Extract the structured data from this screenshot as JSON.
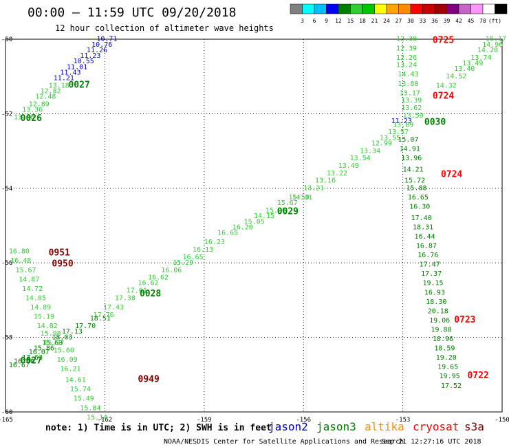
{
  "header": {
    "title": "00:00 – 11:59 UTC 09/20/2018",
    "subtitle": "12 hour collection of altimeter wave heights"
  },
  "colorbar": {
    "colors": [
      "#808080",
      "#00ffff",
      "#00bfff",
      "#0000ff",
      "#008000",
      "#32cd32",
      "#00c800",
      "#ffff00",
      "#ffa500",
      "#ff8c00",
      "#ff0000",
      "#c80000",
      "#a00000",
      "#800080",
      "#c864c8",
      "#ff96ff",
      "#ffffff",
      "#000000"
    ],
    "labels": [
      "3",
      "6",
      "9",
      "12",
      "15",
      "18",
      "21",
      "24",
      "27",
      "30",
      "33",
      "36",
      "39",
      "42",
      "45",
      "70",
      "(ft)"
    ]
  },
  "footer": {
    "note": "note: 1) Time is in UTC; 2) SWH is in feet",
    "credit": "NOAA/NESDIS Center for Satellite Applications and Research",
    "timestamp": "Sep 21 12:27:16 UTC 2018"
  },
  "legend": [
    {
      "name": "jason2",
      "color": "#0000cc"
    },
    {
      "name": "jason3",
      "color": "#008000"
    },
    {
      "name": "altika",
      "color": "#ff8c00"
    },
    {
      "name": "cryosat",
      "color": "#ff0000"
    },
    {
      "name": "s3a",
      "color": "#800000"
    }
  ],
  "chart_data": {
    "type": "scatter",
    "xlim": [
      -165,
      -150
    ],
    "ylim": [
      -60,
      -50
    ],
    "x_ticks": [
      -165,
      -162,
      -159,
      -156,
      -153,
      -150
    ],
    "y_ticks": [
      -50,
      -52,
      -54,
      -56,
      -58,
      -60
    ],
    "x_tick_labels": [
      "-165",
      "-162",
      "-159",
      "-156",
      "-153",
      "-150"
    ],
    "y_tick_labels": [
      "-50",
      "-52",
      "-54",
      "-56",
      "-58",
      "-60"
    ],
    "grid": true,
    "colors": {
      "light": "#32cd32",
      "dark": "#008000",
      "blue": "#0000cc",
      "red": "#ff0000",
      "maroon": "#800000"
    },
    "time_labels": [
      {
        "text": "0725",
        "x": -152.1,
        "y": -50.1,
        "color": "red"
      },
      {
        "text": "0724",
        "x": -152.1,
        "y": -51.6,
        "color": "red"
      },
      {
        "text": "0724",
        "x": -151.85,
        "y": -53.7,
        "color": "red"
      },
      {
        "text": "0723",
        "x": -151.45,
        "y": -57.6,
        "color": "red"
      },
      {
        "text": "0722",
        "x": -151.05,
        "y": -59.1,
        "color": "red"
      },
      {
        "text": "0027",
        "x": -163.1,
        "y": -51.3,
        "color": "dark"
      },
      {
        "text": "0026",
        "x": -164.55,
        "y": -52.2,
        "color": "dark"
      },
      {
        "text": "0030",
        "x": -152.35,
        "y": -52.3,
        "color": "dark"
      },
      {
        "text": "0029",
        "x": -156.8,
        "y": -54.7,
        "color": "dark"
      },
      {
        "text": "0028",
        "x": -160.95,
        "y": -56.9,
        "color": "dark"
      },
      {
        "text": "0027",
        "x": -164.55,
        "y": -58.7,
        "color": "dark"
      },
      {
        "text": "0951",
        "x": -163.7,
        "y": -55.8,
        "color": "maroon"
      },
      {
        "text": "0950",
        "x": -163.6,
        "y": -56.1,
        "color": "maroon"
      },
      {
        "text": "0949",
        "x": -161.0,
        "y": -59.2,
        "color": "maroon"
      }
    ],
    "series": [
      {
        "name": "jason2",
        "color": "blue",
        "points": [
          {
            "x": -162.25,
            "y": -50.05,
            "v": "10.71"
          },
          {
            "x": -162.4,
            "y": -50.2,
            "v": "10.76"
          },
          {
            "x": -162.55,
            "y": -50.35,
            "v": "11.26"
          },
          {
            "x": -162.75,
            "y": -50.5,
            "v": "11.23"
          },
          {
            "x": -162.95,
            "y": -50.65,
            "v": "10.55"
          },
          {
            "x": -163.15,
            "y": -50.8,
            "v": "11.01"
          },
          {
            "x": -163.35,
            "y": -50.95,
            "v": "11.43"
          },
          {
            "x": -163.55,
            "y": -51.1,
            "v": "11.21"
          },
          {
            "x": -153.35,
            "y": -52.25,
            "v": "11.23"
          }
        ]
      },
      {
        "name": "jason3-a",
        "color": "light",
        "points": [
          {
            "x": -163.7,
            "y": -51.3,
            "v": "13.18"
          },
          {
            "x": -163.95,
            "y": -51.45,
            "v": "12.82"
          },
          {
            "x": -164.1,
            "y": -51.6,
            "v": "12.48"
          },
          {
            "x": -164.3,
            "y": -51.8,
            "v": "12.89"
          },
          {
            "x": -164.5,
            "y": -51.95,
            "v": "13.36"
          },
          {
            "x": -164.75,
            "y": -52.15,
            "v": "13.86"
          }
        ]
      },
      {
        "name": "jason3-b",
        "color": "light",
        "points": [
          {
            "x": -153.2,
            "y": -50.05,
            "v": "12.30"
          },
          {
            "x": -153.2,
            "y": -50.3,
            "v": "12.39"
          },
          {
            "x": -153.2,
            "y": -50.55,
            "v": "12.26"
          },
          {
            "x": -153.2,
            "y": -50.75,
            "v": "13.24"
          },
          {
            "x": -153.15,
            "y": -51.0,
            "v": "14.43"
          },
          {
            "x": -153.15,
            "y": -51.25,
            "v": "13.80"
          },
          {
            "x": -153.1,
            "y": -51.5,
            "v": "13.17"
          },
          {
            "x": -153.05,
            "y": -51.7,
            "v": "13.39"
          },
          {
            "x": -153.05,
            "y": -51.9,
            "v": "13.62"
          },
          {
            "x": -153.0,
            "y": -52.1,
            "v": "13.50"
          },
          {
            "x": -150.5,
            "y": -50.05,
            "v": "15.17"
          },
          {
            "x": -150.6,
            "y": -50.2,
            "v": "14.96"
          },
          {
            "x": -150.75,
            "y": -50.35,
            "v": "14.20"
          },
          {
            "x": -150.95,
            "y": -50.55,
            "v": "13.74"
          },
          {
            "x": -151.2,
            "y": -50.7,
            "v": "13.49"
          },
          {
            "x": -151.45,
            "y": -50.85,
            "v": "13.40"
          },
          {
            "x": -151.7,
            "y": -51.05,
            "v": "14.52"
          },
          {
            "x": -152.0,
            "y": -51.3,
            "v": "14.32"
          }
        ]
      },
      {
        "name": "jason3-c",
        "color": "light",
        "points": [
          {
            "x": -153.3,
            "y": -52.35,
            "v": "13.09"
          },
          {
            "x": -153.45,
            "y": -52.55,
            "v": "13.57"
          },
          {
            "x": -153.7,
            "y": -52.7,
            "v": "13.55"
          },
          {
            "x": -153.95,
            "y": -52.85,
            "v": "12.99"
          },
          {
            "x": -154.3,
            "y": -53.05,
            "v": "13.34"
          },
          {
            "x": -154.6,
            "y": -53.25,
            "v": "13.54"
          },
          {
            "x": -154.95,
            "y": -53.45,
            "v": "13.49"
          },
          {
            "x": -155.3,
            "y": -53.65,
            "v": "13.22"
          },
          {
            "x": -155.65,
            "y": -53.85,
            "v": "13.16"
          },
          {
            "x": -156.0,
            "y": -54.05,
            "v": "13.21"
          },
          {
            "x": -156.35,
            "y": -54.3,
            "v": "14.31"
          },
          {
            "x": -156.45,
            "y": -54.3,
            "v": "15.50"
          },
          {
            "x": -156.8,
            "y": -54.45,
            "v": "15.67"
          },
          {
            "x": -157.15,
            "y": -54.65,
            "v": "15.26"
          },
          {
            "x": -157.5,
            "y": -54.8,
            "v": "14.15"
          },
          {
            "x": -157.8,
            "y": -54.95,
            "v": "15.05"
          },
          {
            "x": -158.15,
            "y": -55.1,
            "v": "16.20"
          },
          {
            "x": -158.6,
            "y": -55.25,
            "v": "16.65"
          },
          {
            "x": -159.0,
            "y": -55.5,
            "v": "16.23"
          },
          {
            "x": -159.35,
            "y": -55.7,
            "v": "16.13"
          },
          {
            "x": -159.65,
            "y": -55.9,
            "v": "16.65"
          },
          {
            "x": -159.95,
            "y": -56.05,
            "v": "15.29"
          },
          {
            "x": -160.3,
            "y": -56.25,
            "v": "16.06"
          },
          {
            "x": -160.7,
            "y": -56.45,
            "v": "16.62"
          },
          {
            "x": -161.0,
            "y": -56.6,
            "v": "16.62"
          },
          {
            "x": -161.35,
            "y": -56.8,
            "v": "17.61"
          },
          {
            "x": -161.7,
            "y": -57.0,
            "v": "17.38"
          },
          {
            "x": -162.05,
            "y": -57.25,
            "v": "17.43"
          },
          {
            "x": -162.35,
            "y": -57.45,
            "v": "17.76"
          }
        ]
      },
      {
        "name": "jason3-d",
        "color": "dark",
        "points": [
          {
            "x": -162.45,
            "y": -57.55,
            "v": "18.51"
          },
          {
            "x": -162.9,
            "y": -57.75,
            "v": "17.70"
          },
          {
            "x": -163.3,
            "y": -57.9,
            "v": "17.13"
          },
          {
            "x": -163.6,
            "y": -58.05,
            "v": "18.03"
          },
          {
            "x": -163.9,
            "y": -58.2,
            "v": "15.69"
          },
          {
            "x": -164.15,
            "y": -58.35,
            "v": "15.86"
          },
          {
            "x": -164.3,
            "y": -58.45,
            "v": "16.07"
          },
          {
            "x": -164.5,
            "y": -58.6,
            "v": "17.63"
          },
          {
            "x": -164.75,
            "y": -58.7,
            "v": "16.40"
          },
          {
            "x": -164.9,
            "y": -58.8,
            "v": "16.67"
          }
        ]
      },
      {
        "name": "jason3-e",
        "color": "light",
        "points": [
          {
            "x": -164.9,
            "y": -55.75,
            "v": "16.80"
          },
          {
            "x": -164.85,
            "y": -56.0,
            "v": "16.48"
          },
          {
            "x": -164.7,
            "y": -56.25,
            "v": "15.67"
          },
          {
            "x": -164.6,
            "y": -56.5,
            "v": "14.87"
          },
          {
            "x": -164.5,
            "y": -56.75,
            "v": "14.72"
          },
          {
            "x": -164.4,
            "y": -57.0,
            "v": "14.05"
          },
          {
            "x": -164.25,
            "y": -57.25,
            "v": "14.89"
          },
          {
            "x": -164.15,
            "y": -57.5,
            "v": "15.19"
          },
          {
            "x": -164.05,
            "y": -57.75,
            "v": "14.82"
          },
          {
            "x": -163.95,
            "y": -57.95,
            "v": "15.98"
          },
          {
            "x": -163.85,
            "y": -58.2,
            "v": "15.97"
          },
          {
            "x": -163.55,
            "y": -58.4,
            "v": "15.60"
          },
          {
            "x": -163.45,
            "y": -58.65,
            "v": "16.09"
          },
          {
            "x": -163.35,
            "y": -58.9,
            "v": "16.21"
          },
          {
            "x": -163.2,
            "y": -59.2,
            "v": "14.61"
          },
          {
            "x": -163.05,
            "y": -59.45,
            "v": "15.74"
          },
          {
            "x": -162.95,
            "y": -59.7,
            "v": "15.49"
          },
          {
            "x": -162.75,
            "y": -59.95,
            "v": "15.84"
          },
          {
            "x": -162.55,
            "y": -60.2,
            "v": "15.14"
          }
        ]
      },
      {
        "name": "jason3-f",
        "color": "dark",
        "points": [
          {
            "x": -153.15,
            "y": -52.75,
            "v": "15.07"
          },
          {
            "x": -153.1,
            "y": -53.0,
            "v": "14.91"
          },
          {
            "x": -153.05,
            "y": -53.25,
            "v": "13.96"
          },
          {
            "x": -153.0,
            "y": -53.55,
            "v": "14.21"
          },
          {
            "x": -152.95,
            "y": -53.85,
            "v": "15.72"
          },
          {
            "x": -152.9,
            "y": -54.05,
            "v": "15.88"
          },
          {
            "x": -152.85,
            "y": -54.3,
            "v": "16.65"
          },
          {
            "x": -152.8,
            "y": -54.55,
            "v": "16.30"
          },
          {
            "x": -152.75,
            "y": -54.85,
            "v": "17.40"
          },
          {
            "x": -152.7,
            "y": -55.1,
            "v": "18.31"
          },
          {
            "x": -152.65,
            "y": -55.35,
            "v": "16.44"
          },
          {
            "x": -152.6,
            "y": -55.6,
            "v": "16.87"
          },
          {
            "x": -152.55,
            "y": -55.85,
            "v": "16.76"
          },
          {
            "x": -152.5,
            "y": -56.1,
            "v": "17.47"
          },
          {
            "x": -152.45,
            "y": -56.35,
            "v": "17.37"
          },
          {
            "x": -152.4,
            "y": -56.6,
            "v": "19.15"
          },
          {
            "x": -152.35,
            "y": -56.85,
            "v": "16.93"
          },
          {
            "x": -152.3,
            "y": -57.1,
            "v": "18.30"
          },
          {
            "x": -152.25,
            "y": -57.35,
            "v": "20.18"
          },
          {
            "x": -152.2,
            "y": -57.6,
            "v": "19.06"
          },
          {
            "x": -152.15,
            "y": -57.85,
            "v": "19.88"
          },
          {
            "x": -152.1,
            "y": -58.1,
            "v": "18.96"
          },
          {
            "x": -152.05,
            "y": -58.35,
            "v": "18.59"
          },
          {
            "x": -152.0,
            "y": -58.6,
            "v": "19.20"
          },
          {
            "x": -151.95,
            "y": -58.85,
            "v": "19.65"
          },
          {
            "x": -151.9,
            "y": -59.1,
            "v": "19.95"
          },
          {
            "x": -151.85,
            "y": -59.35,
            "v": "17.52"
          }
        ]
      }
    ]
  }
}
